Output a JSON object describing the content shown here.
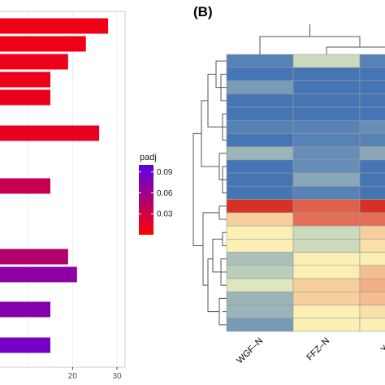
{
  "chart_data": [
    {
      "type": "bar",
      "orientation": "horizontal",
      "x_ticks": [
        20,
        30
      ],
      "xlim": [
        0,
        30
      ],
      "bars": [
        {
          "value": 28,
          "padj": 0.01
        },
        {
          "value": 23,
          "padj": 0.01
        },
        {
          "value": 19,
          "padj": 0.011
        },
        {
          "value": 15,
          "padj": 0.012
        },
        {
          "value": 15,
          "padj": 0.012
        },
        {
          "value": 26,
          "padj": 0.014
        },
        {
          "value": 15,
          "padj": 0.035
        },
        {
          "value": 19,
          "padj": 0.047
        },
        {
          "value": 21,
          "padj": 0.07
        },
        {
          "value": 15,
          "padj": 0.075
        },
        {
          "value": 15,
          "padj": 0.085
        }
      ],
      "legend": {
        "title": "padj",
        "ticks": [
          "0.09",
          "0.06",
          "0.03"
        ],
        "tick_values": [
          0.09,
          0.06,
          0.03
        ],
        "range": [
          0.0,
          0.1
        ],
        "colors": [
          "#ff0000",
          "#5c00e6"
        ]
      }
    },
    {
      "type": "heatmap",
      "panel_label": "(B)",
      "columns": [
        "WGF–N",
        "FFZ–N",
        "YSL"
      ],
      "values": [
        [
          -1.0,
          -0.3,
          -1.0
        ],
        [
          -1.1,
          -1.1,
          -1.1
        ],
        [
          -0.8,
          -1.1,
          -1.1
        ],
        [
          -1.1,
          -1.1,
          -1.1
        ],
        [
          -1.1,
          -1.1,
          -1.1
        ],
        [
          -1.0,
          -1.0,
          -0.9
        ],
        [
          -1.1,
          -1.0,
          -1.0
        ],
        [
          -0.6,
          -0.9,
          -0.7
        ],
        [
          -1.1,
          -0.9,
          -1.1
        ],
        [
          -1.1,
          -0.7,
          -1.1
        ],
        [
          -1.1,
          -1.0,
          -1.1
        ],
        [
          1.3,
          1.0,
          1.3
        ],
        [
          0.3,
          0.9,
          0.9
        ],
        [
          0.1,
          -0.3,
          0.3
        ],
        [
          0.1,
          -0.3,
          0.2
        ],
        [
          -0.5,
          0.1,
          0.1
        ],
        [
          -0.4,
          0.1,
          0.4
        ],
        [
          -0.2,
          0.3,
          0.5
        ],
        [
          -0.6,
          0.3,
          0.4
        ],
        [
          -0.6,
          0.1,
          0.2
        ],
        [
          -0.8,
          0.1,
          0.1
        ]
      ],
      "color_scale": [
        "#4575b4",
        "#ffffbf",
        "#d73027"
      ]
    }
  ]
}
